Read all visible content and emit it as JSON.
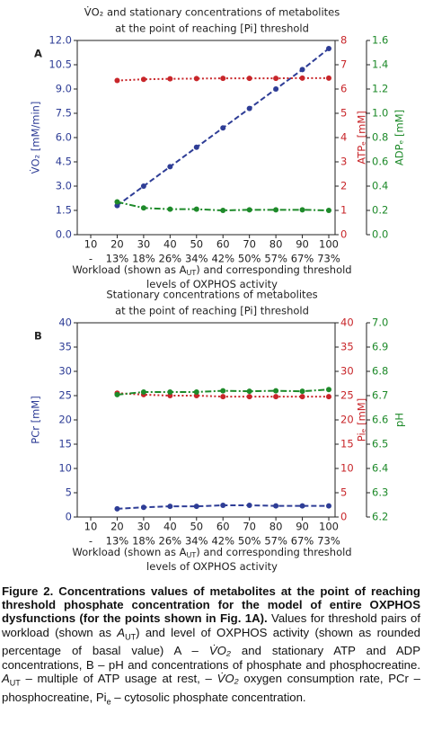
{
  "chart_data": [
    {
      "type": "line",
      "panel": "A",
      "title": [
        "V̇O₂ and stationary concentrations of metabolites",
        "at the point of reaching [Pi] threshold"
      ],
      "categories": [
        "10",
        "20",
        "30",
        "40",
        "50",
        "60",
        "70",
        "80",
        "90",
        "100"
      ],
      "category_sublabels": [
        "-",
        "13%",
        "18%",
        "26%",
        "34%",
        "42%",
        "50%",
        "57%",
        "67%",
        "73%"
      ],
      "xlabel": [
        [
          {
            "text": "Workload (shown as A"
          },
          {
            "text": "UT",
            "style": "sub"
          },
          {
            "text": ") and corresponding threshold"
          }
        ],
        [
          {
            "text": "levels of OXPHOS activity"
          }
        ]
      ],
      "ylabel": "V̇O₂ [mM/min]",
      "ycolor": "#2e3d96",
      "ylim": [
        0,
        12
      ],
      "yticks": [
        {
          "value": 0,
          "label": "0.0"
        },
        1.5,
        {
          "value": 3,
          "label": "3.0"
        },
        4.5,
        {
          "value": 6,
          "label": "6.0"
        },
        7.5,
        {
          "value": 9,
          "label": "9.0"
        },
        10.5,
        {
          "value": 12,
          "label": "12.0"
        }
      ],
      "y2label": "ATPₑ [mM]",
      "y2color": "#c8262a",
      "y2lim": [
        0,
        8
      ],
      "y2ticks": [
        0,
        1,
        2,
        3,
        4,
        5,
        6,
        7,
        8
      ],
      "y3label": "ADPₑ [mM]",
      "y3color": "#1e8a2a",
      "y3lim": [
        0,
        1.6
      ],
      "y3ticks": [
        {
          "value": 0,
          "label": "0.0"
        },
        0.2,
        0.4,
        0.6,
        0.8,
        {
          "value": 1,
          "label": "1.0"
        },
        1.2,
        1.4,
        1.6
      ],
      "series": [
        {
          "axis": "y",
          "color": "#2e3d96",
          "linestyle": "dashed",
          "values": [
            null,
            1.8,
            3.0,
            4.2,
            5.4,
            6.6,
            7.8,
            9.0,
            10.2,
            11.5
          ]
        },
        {
          "axis": "y2",
          "color": "#c8262a",
          "linestyle": "dotted",
          "values": [
            null,
            6.35,
            6.4,
            6.42,
            6.43,
            6.44,
            6.44,
            6.44,
            6.45,
            6.45
          ]
        },
        {
          "axis": "y3",
          "color": "#1e8a2a",
          "linestyle": "dashdot",
          "values": [
            null,
            0.27,
            0.22,
            0.21,
            0.21,
            0.2,
            0.205,
            0.205,
            0.205,
            0.2
          ]
        }
      ]
    },
    {
      "type": "line",
      "panel": "B",
      "title": [
        "Stationary concentrations of metabolites",
        "at the point of reaching [Pi] threshold"
      ],
      "categories": [
        "10",
        "20",
        "30",
        "40",
        "50",
        "60",
        "70",
        "80",
        "90",
        "100"
      ],
      "category_sublabels": [
        "-",
        "13%",
        "18%",
        "26%",
        "34%",
        "42%",
        "50%",
        "57%",
        "67%",
        "73%"
      ],
      "xlabel": [
        [
          {
            "text": "Workload (shown as A"
          },
          {
            "text": "UT",
            "style": "sub"
          },
          {
            "text": ") and corresponding threshold"
          }
        ],
        [
          {
            "text": "levels of OXPHOS activity"
          }
        ]
      ],
      "ylabel": "PCr [mM]",
      "ycolor": "#2e3d96",
      "ylim": [
        0,
        40
      ],
      "yticks": [
        0,
        5,
        10,
        15,
        20,
        25,
        30,
        35,
        40
      ],
      "y2label": "Piₑ [mM]",
      "y2color": "#c8262a",
      "y2lim": [
        0,
        40
      ],
      "y2ticks": [
        0,
        5,
        10,
        15,
        20,
        25,
        30,
        35,
        40
      ],
      "y3label": "pH",
      "y3color": "#1e8a2a",
      "y3lim": [
        6.2,
        7.0
      ],
      "y3ticks": [
        6.2,
        6.3,
        6.4,
        6.5,
        6.6,
        6.7,
        6.8,
        6.9,
        {
          "value": 7,
          "label": "7.0"
        }
      ],
      "series": [
        {
          "axis": "y",
          "color": "#2e3d96",
          "linestyle": "dashed",
          "values": [
            null,
            1.7,
            2.0,
            2.2,
            2.2,
            2.4,
            2.4,
            2.3,
            2.3,
            2.3
          ]
        },
        {
          "axis": "y2",
          "color": "#c8262a",
          "linestyle": "dotted",
          "values": [
            null,
            25.5,
            25.2,
            25.0,
            25.0,
            24.8,
            24.8,
            24.8,
            24.8,
            24.8
          ]
        },
        {
          "axis": "y3",
          "color": "#1e8a2a",
          "linestyle": "dashdot",
          "values": [
            null,
            6.704,
            6.715,
            6.715,
            6.715,
            6.72,
            6.718,
            6.72,
            6.718,
            6.725
          ]
        }
      ]
    }
  ],
  "caption": {
    "title": "Figure 2. Concentrations values of metabolites at the point of reaching threshold phosphate concentration for the model of entire OXPHOS dysfunctions (for the points shown in Fig. 1A).",
    "body": [
      {
        "text": "Values for threshold pairs of workload (shown as "
      },
      {
        "text": "A",
        "style": "italic"
      },
      {
        "text": "UT",
        "style": "sub"
      },
      {
        "text": ") and level of OXPHOS activity (shown as rounded percentage of basal value) A – "
      },
      {
        "text": "V̇O₂",
        "style": "italic"
      },
      {
        "text": " and stationary ATP and ADP concentrations, B – pH and concentrations of phosphate and phosphocreatine. "
      },
      {
        "text": "A",
        "style": "italic"
      },
      {
        "text": "UT",
        "style": "sub"
      },
      {
        "text": " – multiple of ATP usage at rest,  – "
      },
      {
        "text": "V̇O₂",
        "style": "italic"
      },
      {
        "text": " oxygen consumption rate, PCr – phosphocreatine, Pi"
      },
      {
        "text": "e",
        "style": "sub"
      },
      {
        "text": " – cytosolic phosphate concentration."
      }
    ]
  }
}
